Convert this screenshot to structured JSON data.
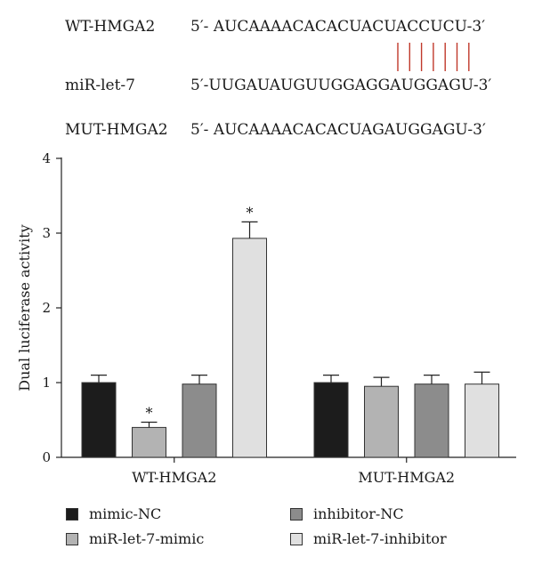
{
  "sequences": {
    "wt": {
      "name": "WT-HMGA2",
      "text": "5′-  AUCAAAACACACUACUACCUCU-3′"
    },
    "mir": {
      "name": "miR-let-7",
      "text": "5′-UUGAUAUGUUGGAGGAUGGAGU-3′"
    },
    "mut": {
      "name": "MUT-HMGA2",
      "text": "5′- AUCAAAACACACUAGAUGGAGU-3′"
    },
    "pairing_line_count": 7,
    "pairing_color": "#c0392b"
  },
  "chart_data": {
    "type": "bar",
    "categories": [
      "WT-HMGA2",
      "MUT-HMGA2"
    ],
    "ylabel": "Dual luciferase activity",
    "ylim": [
      0,
      4
    ],
    "yticks": [
      "0",
      "1",
      "2",
      "3",
      "4"
    ],
    "series": [
      {
        "name": "mimic-NC",
        "color": "#1c1c1c",
        "values": [
          1.0,
          1.0
        ],
        "errors": [
          0.1,
          0.1
        ],
        "sig": [
          "",
          ""
        ]
      },
      {
        "name": "miR-let-7-mimic",
        "color": "#b3b3b3",
        "values": [
          0.4,
          0.95
        ],
        "errors": [
          0.07,
          0.12
        ],
        "sig": [
          "*",
          ""
        ]
      },
      {
        "name": "inhibitor-NC",
        "color": "#8c8c8c",
        "values": [
          0.98,
          0.98
        ],
        "errors": [
          0.12,
          0.12
        ],
        "sig": [
          "",
          ""
        ]
      },
      {
        "name": "miR-let-7-inhibitor",
        "color": "#e0e0e0",
        "values": [
          2.93,
          0.98
        ],
        "errors": [
          0.22,
          0.16
        ],
        "sig": [
          "*",
          ""
        ]
      }
    ]
  }
}
